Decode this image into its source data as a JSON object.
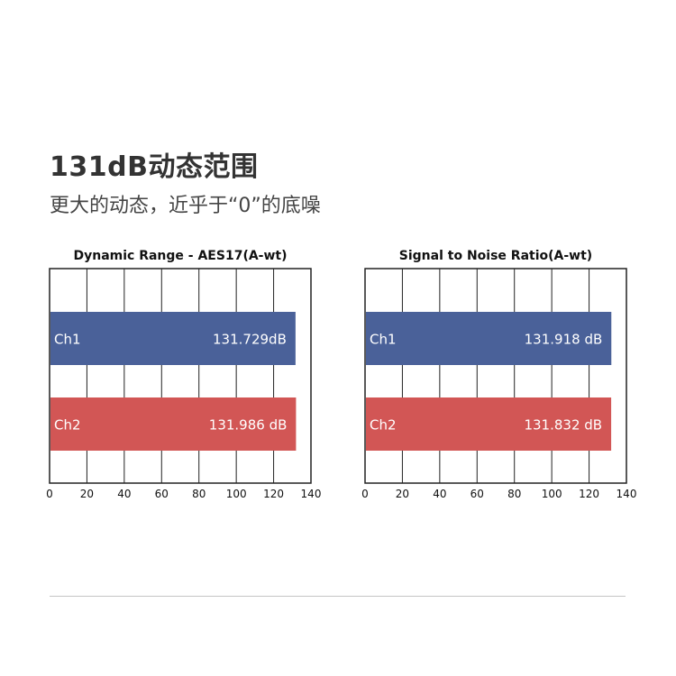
{
  "header": {
    "title": "131dB动态范围",
    "subtitle": "更大的动态，近乎于“0”的底噪"
  },
  "colors": {
    "ch1": "#4a6199",
    "ch2": "#d25655",
    "grid": "#222222",
    "text_light": "#ffffff"
  },
  "chart_data": [
    {
      "type": "bar",
      "orientation": "horizontal",
      "title": "Dynamic Range - AES17(A-wt)",
      "categories": [
        "Ch1",
        "Ch2"
      ],
      "values": [
        131.729,
        131.986
      ],
      "value_labels": [
        "131.729dB",
        "131.986 dB"
      ],
      "xlim": [
        0,
        140
      ],
      "xticks": [
        0,
        20,
        40,
        60,
        80,
        100,
        120,
        140
      ],
      "grid": true
    },
    {
      "type": "bar",
      "orientation": "horizontal",
      "title": "Signal to Noise Ratio(A-wt)",
      "categories": [
        "Ch1",
        "Ch2"
      ],
      "values": [
        131.918,
        131.832
      ],
      "value_labels": [
        "131.918 dB",
        "131.832 dB"
      ],
      "xlim": [
        0,
        140
      ],
      "xticks": [
        0,
        20,
        40,
        60,
        80,
        100,
        120,
        140
      ],
      "grid": true
    }
  ]
}
